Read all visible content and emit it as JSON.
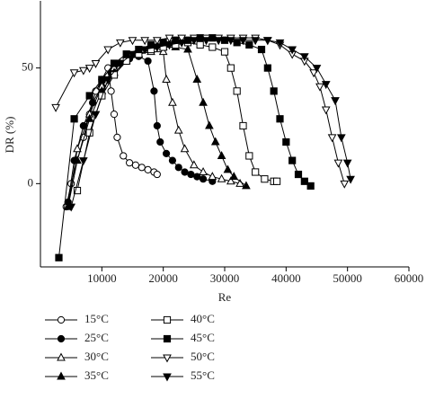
{
  "chart_data": {
    "type": "line",
    "x_label": "Re",
    "y_label": "DR (%)",
    "xlim": [
      0,
      60000
    ],
    "xticks": [
      10000,
      20000,
      30000,
      40000,
      50000,
      60000
    ],
    "ylim": [
      -36,
      79
    ],
    "yticks": [
      0,
      50
    ],
    "series": [
      {
        "name": "15°C",
        "color": "#000000",
        "marker": "circle",
        "filled": false,
        "x": [
          4200,
          5000,
          7000,
          8000,
          9000,
          10000,
          11000,
          11500,
          12000,
          12500,
          13500,
          14500,
          15500,
          16500,
          17500,
          18500,
          19000
        ],
        "values": [
          -10,
          0,
          20,
          30,
          40,
          45,
          50,
          40,
          30,
          20,
          12,
          9,
          8,
          7,
          6,
          5,
          4
        ]
      },
      {
        "name": "25°C",
        "color": "#000000",
        "marker": "circle",
        "filled": true,
        "x": [
          4500,
          5500,
          7000,
          8500,
          10000,
          11500,
          13000,
          14500,
          16000,
          17500,
          18500,
          19000,
          19500,
          20500,
          21500,
          22500,
          23500,
          24500,
          25500,
          26500,
          28000
        ],
        "values": [
          -8,
          10,
          25,
          35,
          42,
          48,
          52,
          54,
          55,
          53,
          40,
          25,
          18,
          13,
          10,
          7,
          5,
          4,
          3,
          2,
          1
        ]
      },
      {
        "name": "30°C",
        "color": "#000000",
        "marker": "triangle-up",
        "filled": false,
        "x": [
          4500,
          6000,
          8000,
          10000,
          12000,
          14000,
          16000,
          18000,
          20000,
          20500,
          21500,
          22500,
          23500,
          25000,
          26500,
          28000,
          29500,
          31000,
          32500
        ],
        "values": [
          -10,
          15,
          30,
          42,
          50,
          54,
          56,
          57,
          57,
          45,
          35,
          23,
          15,
          8,
          5,
          3,
          2,
          1,
          0
        ]
      },
      {
        "name": "35°C",
        "color": "#000000",
        "marker": "triangle-up",
        "filled": true,
        "x": [
          4500,
          6000,
          8000,
          10000,
          12000,
          14000,
          16000,
          18000,
          20000,
          22000,
          24000,
          25500,
          26500,
          27500,
          28500,
          29500,
          30500,
          31500,
          33500
        ],
        "values": [
          -10,
          10,
          28,
          40,
          48,
          53,
          56,
          58,
          59,
          59,
          58,
          45,
          35,
          25,
          18,
          12,
          6,
          3,
          -1
        ]
      },
      {
        "name": "40°C",
        "color": "#000000",
        "marker": "square",
        "filled": false,
        "x": [
          6000,
          8000,
          10000,
          12000,
          14000,
          16000,
          18000,
          20000,
          22000,
          24000,
          26000,
          28000,
          30000,
          31000,
          32000,
          33000,
          34000,
          35000,
          36500,
          38000,
          38500
        ],
        "values": [
          -3,
          22,
          38,
          47,
          53,
          56,
          58,
          59,
          60,
          61,
          60,
          59,
          57,
          50,
          40,
          25,
          12,
          5,
          2,
          1,
          1
        ]
      },
      {
        "name": "45°C",
        "color": "#000000",
        "marker": "square",
        "filled": true,
        "x": [
          3000,
          5500,
          8000,
          10000,
          12000,
          14000,
          16000,
          18000,
          20000,
          22000,
          24000,
          26000,
          28000,
          30000,
          32000,
          34000,
          36000,
          37000,
          38000,
          39000,
          40000,
          41000,
          42000,
          43000,
          44000
        ],
        "values": [
          -32,
          28,
          38,
          45,
          52,
          56,
          58,
          60,
          61,
          62,
          62,
          63,
          63,
          62,
          61,
          60,
          58,
          50,
          40,
          28,
          18,
          10,
          4,
          1,
          -1
        ]
      },
      {
        "name": "50°C",
        "color": "#000000",
        "marker": "triangle-down",
        "filled": false,
        "x": [
          2500,
          5500,
          7000,
          8000,
          9000,
          11000,
          13000,
          15000,
          17000,
          19000,
          21000,
          23000,
          25000,
          27000,
          29000,
          31000,
          33000,
          35000,
          37000,
          39000,
          41000,
          43000,
          44500,
          45500,
          46500,
          47500,
          48500,
          49500
        ],
        "values": [
          33,
          48,
          49,
          50,
          52,
          58,
          61,
          62,
          62,
          62,
          63,
          63,
          63,
          63,
          63,
          63,
          63,
          63,
          62,
          60,
          56,
          53,
          48,
          42,
          32,
          20,
          9,
          0
        ]
      },
      {
        "name": "55°C",
        "color": "#000000",
        "marker": "triangle-down",
        "filled": true,
        "x": [
          5000,
          7000,
          9000,
          11000,
          13000,
          15000,
          17000,
          19000,
          21000,
          23000,
          25000,
          27000,
          29000,
          31000,
          33000,
          35000,
          37000,
          39000,
          41000,
          43000,
          45000,
          46500,
          48000,
          49000,
          50000,
          50500
        ],
        "values": [
          -10,
          10,
          30,
          45,
          52,
          56,
          58,
          59,
          60,
          61,
          62,
          62,
          62,
          62,
          62,
          62,
          62,
          61,
          58,
          55,
          50,
          43,
          36,
          20,
          9,
          2
        ]
      }
    ]
  }
}
